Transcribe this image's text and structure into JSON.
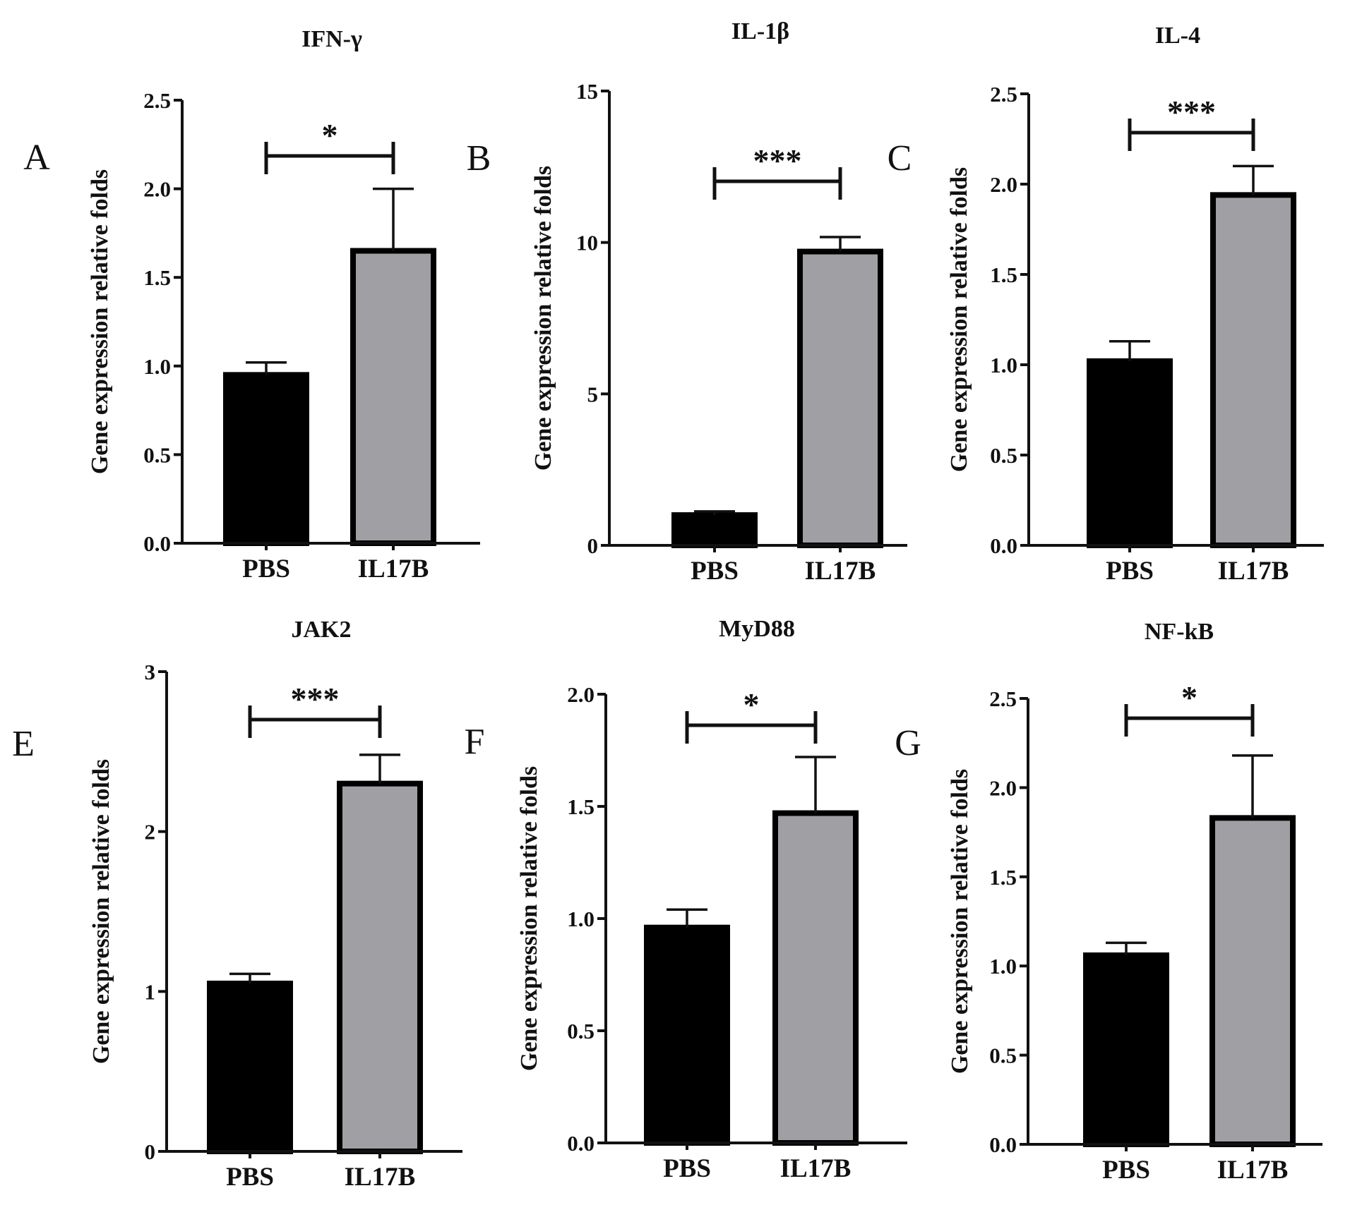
{
  "chart_data": [
    {
      "type": "bar",
      "panel": "A",
      "title": "IFN-γ",
      "ylabel": "Gene expression relative folds",
      "categories": [
        "PBS",
        "IL17B"
      ],
      "values": [
        0.95,
        1.65
      ],
      "errors": [
        0.07,
        0.35
      ],
      "ylim": [
        0,
        2.5
      ],
      "yticks": [
        0,
        0.5,
        1.0,
        1.5,
        2.0,
        2.5
      ],
      "ytick_labels": [
        "0.0",
        "0.5",
        "1.0",
        "1.5",
        "2.0",
        "2.5"
      ],
      "significance": "*",
      "colors": [
        "#000000",
        "#a09fa4"
      ]
    },
    {
      "type": "bar",
      "panel": "B",
      "title": "IL-1β",
      "ylabel": "Gene expression relative folds",
      "categories": [
        "PBS",
        "IL17B"
      ],
      "values": [
        1.0,
        9.7
      ],
      "errors": [
        0.12,
        0.48
      ],
      "ylim": [
        0,
        15
      ],
      "yticks": [
        0,
        5,
        10,
        15
      ],
      "ytick_labels": [
        "0",
        "5",
        "10",
        "15"
      ],
      "significance": "***",
      "colors": [
        "#000000",
        "#a09fa4"
      ]
    },
    {
      "type": "bar",
      "panel": "C",
      "title": "IL-4",
      "ylabel": "Gene expression relative folds",
      "categories": [
        "PBS",
        "IL17B"
      ],
      "values": [
        1.02,
        1.94
      ],
      "errors": [
        0.11,
        0.16
      ],
      "ylim": [
        0,
        2.5
      ],
      "yticks": [
        0,
        0.5,
        1.0,
        1.5,
        2.0,
        2.5
      ],
      "ytick_labels": [
        "0.0",
        "0.5",
        "1.0",
        "1.5",
        "2.0",
        "2.5"
      ],
      "significance": "***",
      "colors": [
        "#000000",
        "#a09fa4"
      ]
    },
    {
      "type": "bar",
      "panel": "E",
      "title": "JAK2",
      "ylabel": "Gene expression relative folds",
      "categories": [
        "PBS",
        "IL17B"
      ],
      "values": [
        1.05,
        2.3
      ],
      "errors": [
        0.06,
        0.18
      ],
      "ylim": [
        0,
        3
      ],
      "yticks": [
        0,
        1,
        2,
        3
      ],
      "ytick_labels": [
        "0",
        "1",
        "2",
        "3"
      ],
      "significance": "***",
      "colors": [
        "#000000",
        "#a09fa4"
      ]
    },
    {
      "type": "bar",
      "panel": "F",
      "title": "MyD88",
      "ylabel": "Gene expression relative folds",
      "categories": [
        "PBS",
        "IL17B"
      ],
      "values": [
        0.96,
        1.47
      ],
      "errors": [
        0.08,
        0.25
      ],
      "ylim": [
        0,
        2.0
      ],
      "yticks": [
        0,
        0.5,
        1.0,
        1.5,
        2.0
      ],
      "ytick_labels": [
        "0.0",
        "0.5",
        "1.0",
        "1.5",
        "2.0"
      ],
      "significance": "*",
      "colors": [
        "#000000",
        "#a09fa4"
      ]
    },
    {
      "type": "bar",
      "panel": "G",
      "title": "NF-kB",
      "ylabel": "Gene expression relative folds",
      "categories": [
        "PBS",
        "IL17B"
      ],
      "values": [
        1.06,
        1.83
      ],
      "errors": [
        0.07,
        0.35
      ],
      "ylim": [
        0,
        2.5
      ],
      "yticks": [
        0,
        0.5,
        1.0,
        1.5,
        2.0,
        2.5
      ],
      "ytick_labels": [
        "0.0",
        "0.5",
        "1.0",
        "1.5",
        "2.0",
        "2.5"
      ],
      "significance": "*",
      "colors": [
        "#000000",
        "#a09fa4"
      ]
    }
  ]
}
